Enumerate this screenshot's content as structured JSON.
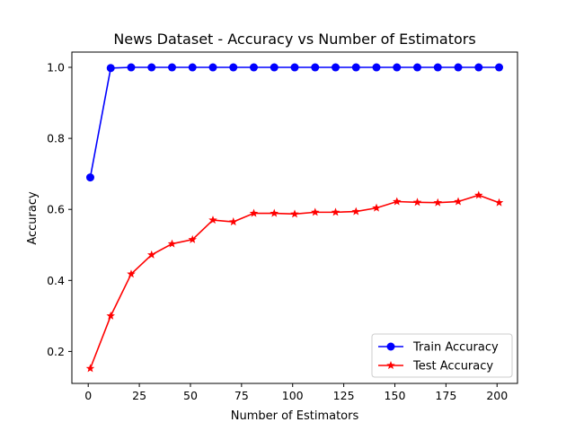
{
  "chart_data": {
    "type": "line",
    "title": "News Dataset - Accuracy vs Number of Estimators",
    "xlabel": "Number of Estimators",
    "ylabel": "Accuracy",
    "xlim": [
      -8,
      210
    ],
    "ylim": [
      0.11,
      1.043
    ],
    "xticks": [
      0,
      25,
      50,
      75,
      100,
      125,
      150,
      175,
      200
    ],
    "yticks": [
      0.2,
      0.4,
      0.6,
      0.8,
      1.0
    ],
    "ytick_labels": [
      "0.2",
      "0.4",
      "0.6",
      "0.8",
      "1.0"
    ],
    "grid": false,
    "legend": "lower-right",
    "x": [
      1,
      11,
      21,
      31,
      41,
      51,
      61,
      71,
      81,
      91,
      101,
      111,
      121,
      131,
      141,
      151,
      161,
      171,
      181,
      191,
      201
    ],
    "series": [
      {
        "name": "Train Accuracy",
        "color": "#0000ff",
        "marker": "circle",
        "values": [
          0.69,
          0.998,
          1.0,
          1.0,
          1.0,
          1.0,
          1.0,
          1.0,
          1.0,
          1.0,
          1.0,
          1.0,
          1.0,
          1.0,
          1.0,
          1.0,
          1.0,
          1.0,
          1.0,
          1.0,
          1.0
        ]
      },
      {
        "name": "Test Accuracy",
        "color": "#ff0000",
        "marker": "star",
        "values": [
          0.152,
          0.3,
          0.418,
          0.472,
          0.503,
          0.515,
          0.57,
          0.565,
          0.589,
          0.589,
          0.587,
          0.592,
          0.592,
          0.594,
          0.604,
          0.622,
          0.62,
          0.619,
          0.622,
          0.64,
          0.619
        ]
      }
    ]
  }
}
